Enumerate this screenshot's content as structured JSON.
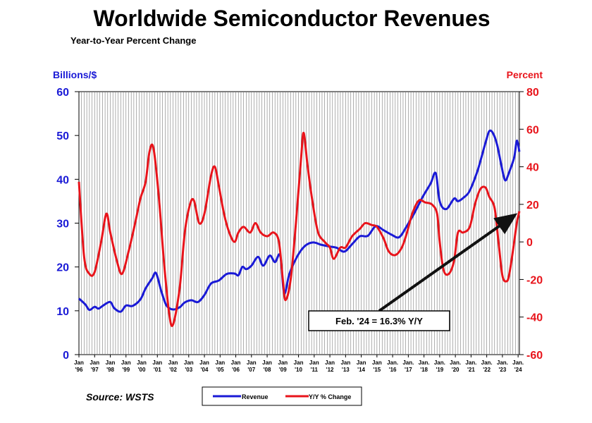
{
  "chart_data": {
    "type": "line",
    "title": "Worldwide Semiconductor Revenues",
    "subtitle": "Year-to-Year Percent Change",
    "left_axis": {
      "label": "Billions/$",
      "min": 0,
      "max": 60,
      "ticks": [
        0,
        10,
        20,
        30,
        40,
        50,
        60
      ],
      "color": "#1a1ad6"
    },
    "right_axis": {
      "label": "Percent",
      "min": -60,
      "max": 80,
      "ticks": [
        -60,
        -40,
        -20,
        0,
        20,
        40,
        60,
        80
      ],
      "color": "#e8141b"
    },
    "x_range": [
      "1996-01",
      "2024-02"
    ],
    "x_ticks": [
      {
        "top": "Jan",
        "bottom": "'96",
        "date": "1996-01"
      },
      {
        "top": "Jan",
        "bottom": "'97",
        "date": "1997-01"
      },
      {
        "top": "Jan",
        "bottom": "'98",
        "date": "1998-01"
      },
      {
        "top": "Jan",
        "bottom": "'99",
        "date": "1999-01"
      },
      {
        "top": "Jan",
        "bottom": "'00",
        "date": "2000-01"
      },
      {
        "top": "Jan",
        "bottom": "'01",
        "date": "2001-01"
      },
      {
        "top": "Jan",
        "bottom": "'02",
        "date": "2002-01"
      },
      {
        "top": "Jan",
        "bottom": "'03",
        "date": "2003-01"
      },
      {
        "top": "Jan",
        "bottom": "'04",
        "date": "2004-01"
      },
      {
        "top": "Jan",
        "bottom": "'05",
        "date": "2005-01"
      },
      {
        "top": "Jan",
        "bottom": "'06",
        "date": "2006-01"
      },
      {
        "top": "Jan",
        "bottom": "'07",
        "date": "2007-01"
      },
      {
        "top": "Jan",
        "bottom": "'08",
        "date": "2008-01"
      },
      {
        "top": "Jan",
        "bottom": "'09",
        "date": "2009-01"
      },
      {
        "top": "Jan",
        "bottom": "'10",
        "date": "2010-01"
      },
      {
        "top": "Jan",
        "bottom": "'11",
        "date": "2011-01"
      },
      {
        "top": "Jan",
        "bottom": "'12",
        "date": "2012-01"
      },
      {
        "top": "Jan",
        "bottom": "'13",
        "date": "2013-01"
      },
      {
        "top": "Jan",
        "bottom": "'14",
        "date": "2014-01"
      },
      {
        "top": "Jan",
        "bottom": "'15",
        "date": "2015-01"
      },
      {
        "top": "Jan.",
        "bottom": "'16",
        "date": "2016-01"
      },
      {
        "top": "Jan.",
        "bottom": "'17",
        "date": "2017-01"
      },
      {
        "top": "Jan.",
        "bottom": "'18",
        "date": "2018-01"
      },
      {
        "top": "Jan.",
        "bottom": "'19",
        "date": "2019-01"
      },
      {
        "top": "Jan.",
        "bottom": "'20",
        "date": "2020-01"
      },
      {
        "top": "Jan.",
        "bottom": "'21",
        "date": "2021-01"
      },
      {
        "top": "Jan.",
        "bottom": "'22",
        "date": "2022-01"
      },
      {
        "top": "Jan.",
        "bottom": "'23",
        "date": "2023-01"
      },
      {
        "top": "Jan.",
        "bottom": "'24",
        "date": "2024-01"
      }
    ],
    "grid": "vertical",
    "legend": {
      "placement": "bottom"
    },
    "series": [
      {
        "name": "Revenue",
        "axis": "left",
        "color": "#1a1ad6",
        "points": [
          [
            "1996-01",
            12.8
          ],
          [
            "1996-06",
            11.4
          ],
          [
            "1996-09",
            10.2
          ],
          [
            "1997-01",
            10.9
          ],
          [
            "1997-04",
            10.5
          ],
          [
            "1997-08",
            11.3
          ],
          [
            "1998-01",
            12.0
          ],
          [
            "1998-04",
            10.6
          ],
          [
            "1998-09",
            9.8
          ],
          [
            "1999-01",
            11.2
          ],
          [
            "1999-06",
            11.1
          ],
          [
            "1999-12",
            12.6
          ],
          [
            "2000-04",
            15.1
          ],
          [
            "2000-09",
            17.4
          ],
          [
            "2000-12",
            18.6
          ],
          [
            "2001-04",
            14.5
          ],
          [
            "2001-08",
            11.2
          ],
          [
            "2002-01",
            10.3
          ],
          [
            "2002-06",
            10.8
          ],
          [
            "2002-10",
            11.9
          ],
          [
            "2003-03",
            12.4
          ],
          [
            "2003-08",
            12.0
          ],
          [
            "2004-01",
            13.6
          ],
          [
            "2004-06",
            16.2
          ],
          [
            "2004-12",
            16.9
          ],
          [
            "2005-06",
            18.4
          ],
          [
            "2005-12",
            18.5
          ],
          [
            "2006-03",
            18.1
          ],
          [
            "2006-06",
            20.0
          ],
          [
            "2006-09",
            19.5
          ],
          [
            "2007-01",
            20.3
          ],
          [
            "2007-06",
            22.3
          ],
          [
            "2007-10",
            20.3
          ],
          [
            "2008-03",
            22.6
          ],
          [
            "2008-07",
            21.1
          ],
          [
            "2008-11",
            22.6
          ],
          [
            "2009-02",
            14.0
          ],
          [
            "2009-06",
            18.4
          ],
          [
            "2009-12",
            22.4
          ],
          [
            "2010-06",
            24.8
          ],
          [
            "2010-12",
            25.6
          ],
          [
            "2011-06",
            25.1
          ],
          [
            "2011-12",
            24.7
          ],
          [
            "2012-06",
            24.4
          ],
          [
            "2012-12",
            23.5
          ],
          [
            "2013-06",
            25.2
          ],
          [
            "2013-12",
            27.0
          ],
          [
            "2014-06",
            27.1
          ],
          [
            "2014-12",
            29.3
          ],
          [
            "2015-06",
            28.4
          ],
          [
            "2015-12",
            27.4
          ],
          [
            "2016-06",
            26.8
          ],
          [
            "2016-12",
            29.4
          ],
          [
            "2017-06",
            32.5
          ],
          [
            "2017-12",
            36.0
          ],
          [
            "2018-06",
            39.0
          ],
          [
            "2018-10",
            41.4
          ],
          [
            "2019-01",
            35.0
          ],
          [
            "2019-06",
            33.2
          ],
          [
            "2019-12",
            35.6
          ],
          [
            "2020-03",
            35.0
          ],
          [
            "2020-08",
            36.0
          ],
          [
            "2020-12",
            37.4
          ],
          [
            "2021-06",
            42.0
          ],
          [
            "2021-12",
            48.3
          ],
          [
            "2022-03",
            51.0
          ],
          [
            "2022-06",
            50.4
          ],
          [
            "2022-09",
            47.8
          ],
          [
            "2022-12",
            43.5
          ],
          [
            "2023-03",
            39.8
          ],
          [
            "2023-06",
            41.5
          ],
          [
            "2023-10",
            45.0
          ],
          [
            "2023-12",
            48.8
          ],
          [
            "2024-02",
            46.3
          ]
        ]
      },
      {
        "name": "Y/Y % Change",
        "axis": "right",
        "color": "#e8141b",
        "points": [
          [
            "1996-01",
            32.0
          ],
          [
            "1996-05",
            -8.0
          ],
          [
            "1996-09",
            -17.0
          ],
          [
            "1997-01",
            -16.0
          ],
          [
            "1997-06",
            0.0
          ],
          [
            "1997-10",
            15.0
          ],
          [
            "1998-01",
            5.0
          ],
          [
            "1998-06",
            -10.0
          ],
          [
            "1998-10",
            -17.0
          ],
          [
            "1999-03",
            -5.0
          ],
          [
            "1999-08",
            10.0
          ],
          [
            "1999-12",
            23.0
          ],
          [
            "2000-04",
            32.0
          ],
          [
            "2000-07",
            48.0
          ],
          [
            "2000-10",
            50.0
          ],
          [
            "2001-02",
            25.0
          ],
          [
            "2001-06",
            -10.0
          ],
          [
            "2001-10",
            -38.0
          ],
          [
            "2002-01",
            -44.0
          ],
          [
            "2002-06",
            -25.0
          ],
          [
            "2002-10",
            5.0
          ],
          [
            "2003-02",
            20.0
          ],
          [
            "2003-05",
            22.0
          ],
          [
            "2003-09",
            10.0
          ],
          [
            "2004-01",
            15.0
          ],
          [
            "2004-06",
            35.0
          ],
          [
            "2004-09",
            40.0
          ],
          [
            "2004-12",
            30.0
          ],
          [
            "2005-04",
            15.0
          ],
          [
            "2005-08",
            5.0
          ],
          [
            "2005-12",
            0.0
          ],
          [
            "2006-03",
            5.0
          ],
          [
            "2006-07",
            8.0
          ],
          [
            "2006-12",
            5.0
          ],
          [
            "2007-04",
            10.0
          ],
          [
            "2007-08",
            5.0
          ],
          [
            "2008-01",
            3.0
          ],
          [
            "2008-06",
            5.0
          ],
          [
            "2008-10",
            0.0
          ],
          [
            "2009-01",
            -20.0
          ],
          [
            "2009-03",
            -31.0
          ],
          [
            "2009-07",
            -20.0
          ],
          [
            "2009-11",
            10.0
          ],
          [
            "2010-03",
            45.0
          ],
          [
            "2010-05",
            58.0
          ],
          [
            "2010-08",
            40.0
          ],
          [
            "2010-12",
            20.0
          ],
          [
            "2011-04",
            5.0
          ],
          [
            "2011-09",
            0.0
          ],
          [
            "2012-01",
            -3.0
          ],
          [
            "2012-04",
            -9.0
          ],
          [
            "2012-09",
            -3.0
          ],
          [
            "2013-01",
            -3.0
          ],
          [
            "2013-06",
            3.0
          ],
          [
            "2013-12",
            7.0
          ],
          [
            "2014-04",
            10.0
          ],
          [
            "2014-09",
            9.0
          ],
          [
            "2015-01",
            8.0
          ],
          [
            "2015-06",
            2.0
          ],
          [
            "2015-10",
            -5.0
          ],
          [
            "2016-03",
            -7.0
          ],
          [
            "2016-08",
            -3.0
          ],
          [
            "2016-12",
            5.0
          ],
          [
            "2017-04",
            15.0
          ],
          [
            "2017-09",
            22.0
          ],
          [
            "2018-02",
            21.0
          ],
          [
            "2018-07",
            20.0
          ],
          [
            "2018-11",
            15.0
          ],
          [
            "2019-01",
            0.0
          ],
          [
            "2019-04",
            -15.0
          ],
          [
            "2019-08",
            -17.0
          ],
          [
            "2019-12",
            -10.0
          ],
          [
            "2020-03",
            5.0
          ],
          [
            "2020-07",
            5.0
          ],
          [
            "2020-12",
            8.0
          ],
          [
            "2021-04",
            20.0
          ],
          [
            "2021-08",
            28.0
          ],
          [
            "2021-12",
            29.0
          ],
          [
            "2022-03",
            24.0
          ],
          [
            "2022-07",
            18.0
          ],
          [
            "2022-10",
            0.0
          ],
          [
            "2023-01",
            -18.0
          ],
          [
            "2023-04",
            -21.0
          ],
          [
            "2023-06",
            -18.0
          ],
          [
            "2023-09",
            -5.0
          ],
          [
            "2023-12",
            10.0
          ],
          [
            "2024-02",
            16.3
          ]
        ]
      }
    ],
    "annotation": {
      "text": "Feb. '24 = 16.3% Y/Y",
      "target_date": "2024-02",
      "target_value": 16.3,
      "axis": "right"
    },
    "source": "Source: WSTS"
  }
}
